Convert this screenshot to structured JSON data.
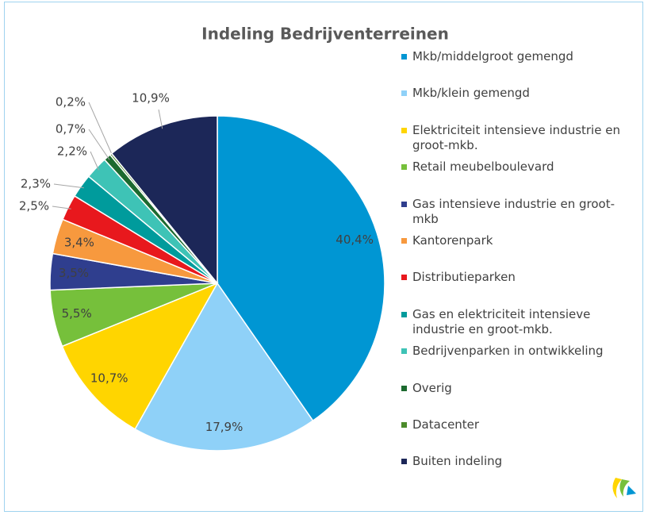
{
  "chart_data": {
    "type": "pie",
    "title": "Indeling Bedrijventerreinen",
    "categories": [
      "Mkb/middelgroot gemengd",
      "Mkb/klein gemengd",
      "Elektriciteit intensieve industrie en groot-mkb.",
      "Retail meubelboulevard",
      "Gas intensieve industrie en groot-mkb",
      "Kantorenpark",
      "Distributieparken",
      "Gas en elektriciteit intensieve industrie en groot-mkb.",
      "Bedrijvenparken in ontwikkeling",
      "Overig",
      "Datacenter",
      "Buiten indeling"
    ],
    "values": [
      40.4,
      17.9,
      10.7,
      5.5,
      3.5,
      3.4,
      2.5,
      2.3,
      2.2,
      0.7,
      0.2,
      10.9
    ],
    "value_labels": [
      "40,4%",
      "17,9%",
      "10,7%",
      "5,5%",
      "3,5%",
      "3,4%",
      "2,5%",
      "2,3%",
      "2,2%",
      "0,7%",
      "0,2%",
      "10,9%"
    ],
    "colors": [
      "#0096d3",
      "#8fd1f8",
      "#ffd500",
      "#76c03b",
      "#2f3e8e",
      "#f7993e",
      "#e8181d",
      "#009b9c",
      "#3ec3b6",
      "#1c6a2f",
      "#4c8b2b",
      "#1c2758"
    ],
    "legend": "right"
  }
}
